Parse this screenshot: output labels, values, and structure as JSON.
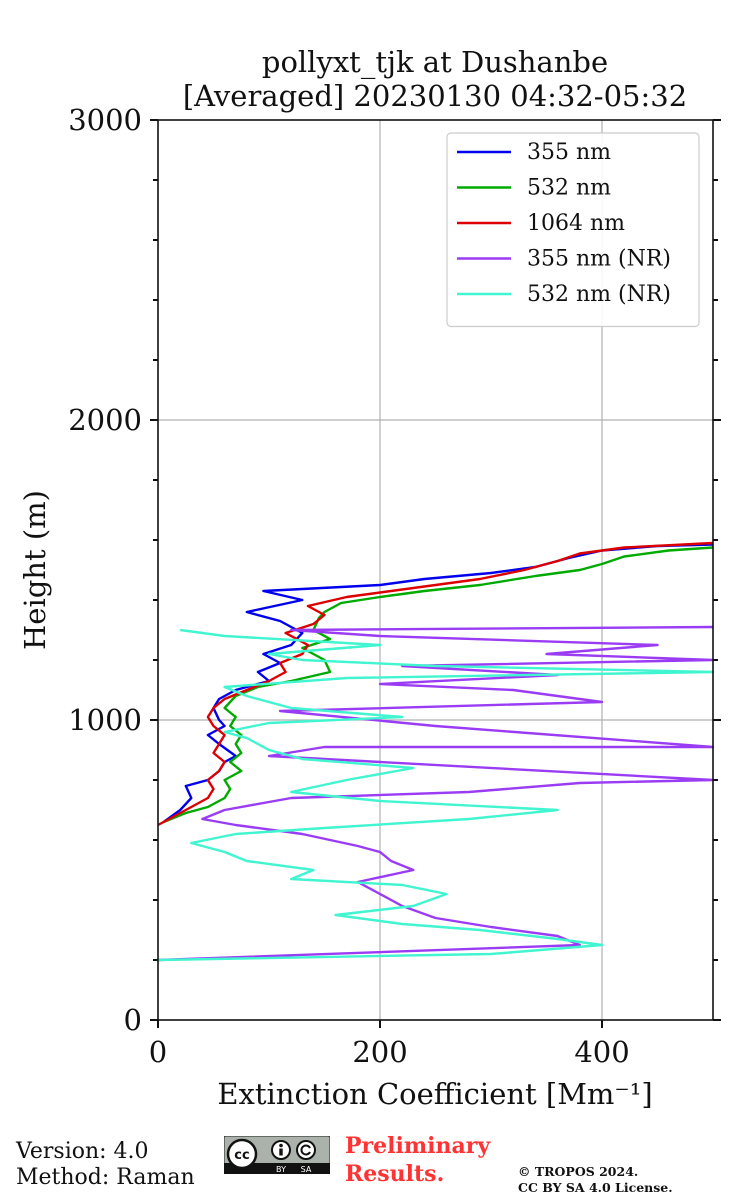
{
  "chart_data": {
    "type": "line",
    "title": "pollyxt_tjk at Dushanbe",
    "subtitle": "[Averaged] 20230130 04:32-05:32",
    "xlabel": "Extinction Coefficient [Mm⁻¹]",
    "ylabel": "Height (m)",
    "xlim": [
      0,
      500
    ],
    "ylim": [
      0,
      3000
    ],
    "x_ticks": [
      0,
      200,
      400
    ],
    "y_ticks": [
      0,
      1000,
      2000,
      3000
    ],
    "grid": true,
    "legend_position": "top-right",
    "series": [
      {
        "name": "355 nm",
        "color": "#0000ee",
        "points": [
          [
            5,
            660
          ],
          [
            20,
            700
          ],
          [
            30,
            740
          ],
          [
            25,
            780
          ],
          [
            45,
            800
          ],
          [
            55,
            830
          ],
          [
            60,
            860
          ],
          [
            70,
            880
          ],
          [
            55,
            920
          ],
          [
            45,
            950
          ],
          [
            60,
            980
          ],
          [
            55,
            1000
          ],
          [
            50,
            1040
          ],
          [
            55,
            1070
          ],
          [
            70,
            1100
          ],
          [
            100,
            1130
          ],
          [
            90,
            1160
          ],
          [
            110,
            1190
          ],
          [
            95,
            1220
          ],
          [
            120,
            1250
          ],
          [
            130,
            1290
          ],
          [
            110,
            1330
          ],
          [
            80,
            1360
          ],
          [
            130,
            1400
          ],
          [
            95,
            1430
          ],
          [
            200,
            1450
          ],
          [
            240,
            1470
          ],
          [
            300,
            1490
          ],
          [
            340,
            1510
          ],
          [
            370,
            1540
          ],
          [
            400,
            1565
          ],
          [
            450,
            1580
          ],
          [
            500,
            1585
          ]
        ]
      },
      {
        "name": "532 nm",
        "color": "#00aa00",
        "points": [
          [
            5,
            660
          ],
          [
            25,
            690
          ],
          [
            45,
            710
          ],
          [
            60,
            740
          ],
          [
            65,
            770
          ],
          [
            60,
            800
          ],
          [
            75,
            830
          ],
          [
            65,
            860
          ],
          [
            75,
            890
          ],
          [
            70,
            920
          ],
          [
            75,
            950
          ],
          [
            65,
            980
          ],
          [
            70,
            1010
          ],
          [
            60,
            1040
          ],
          [
            70,
            1080
          ],
          [
            90,
            1110
          ],
          [
            120,
            1130
          ],
          [
            155,
            1160
          ],
          [
            150,
            1200
          ],
          [
            130,
            1240
          ],
          [
            155,
            1270
          ],
          [
            140,
            1300
          ],
          [
            145,
            1340
          ],
          [
            150,
            1360
          ],
          [
            165,
            1390
          ],
          [
            200,
            1410
          ],
          [
            240,
            1430
          ],
          [
            290,
            1450
          ],
          [
            340,
            1480
          ],
          [
            380,
            1500
          ],
          [
            400,
            1520
          ],
          [
            420,
            1545
          ],
          [
            460,
            1565
          ],
          [
            500,
            1575
          ]
        ]
      },
      {
        "name": "1064 nm",
        "color": "#dd0000",
        "points": [
          [
            0,
            650
          ],
          [
            15,
            680
          ],
          [
            30,
            710
          ],
          [
            45,
            740
          ],
          [
            50,
            770
          ],
          [
            45,
            800
          ],
          [
            55,
            830
          ],
          [
            60,
            860
          ],
          [
            50,
            890
          ],
          [
            55,
            920
          ],
          [
            60,
            950
          ],
          [
            50,
            980
          ],
          [
            45,
            1010
          ],
          [
            50,
            1040
          ],
          [
            60,
            1070
          ],
          [
            80,
            1100
          ],
          [
            100,
            1130
          ],
          [
            115,
            1160
          ],
          [
            110,
            1190
          ],
          [
            130,
            1220
          ],
          [
            135,
            1250
          ],
          [
            115,
            1290
          ],
          [
            140,
            1320
          ],
          [
            150,
            1350
          ],
          [
            135,
            1380
          ],
          [
            170,
            1410
          ],
          [
            230,
            1440
          ],
          [
            290,
            1470
          ],
          [
            330,
            1500
          ],
          [
            360,
            1530
          ],
          [
            380,
            1555
          ],
          [
            420,
            1575
          ],
          [
            500,
            1590
          ]
        ]
      },
      {
        "name": "355 nm (NR)",
        "color": "#9b3cf5",
        "points": [
          [
            0,
            200
          ],
          [
            380,
            250
          ],
          [
            360,
            280
          ],
          [
            300,
            310
          ],
          [
            250,
            340
          ],
          [
            220,
            380
          ],
          [
            200,
            420
          ],
          [
            180,
            460
          ],
          [
            230,
            500
          ],
          [
            210,
            530
          ],
          [
            200,
            560
          ],
          [
            180,
            580
          ],
          [
            130,
            620
          ],
          [
            70,
            650
          ],
          [
            40,
            670
          ],
          [
            60,
            700
          ],
          [
            120,
            740
          ],
          [
            280,
            760
          ],
          [
            380,
            790
          ],
          [
            500,
            800
          ],
          [
            200,
            860
          ],
          [
            100,
            880
          ],
          [
            150,
            910
          ],
          [
            500,
            910
          ],
          [
            250,
            980
          ],
          [
            110,
            1030
          ],
          [
            400,
            1060
          ],
          [
            320,
            1100
          ],
          [
            200,
            1120
          ],
          [
            360,
            1150
          ],
          [
            220,
            1180
          ],
          [
            500,
            1200
          ],
          [
            350,
            1220
          ],
          [
            450,
            1250
          ],
          [
            200,
            1280
          ],
          [
            120,
            1300
          ],
          [
            500,
            1310
          ]
        ]
      },
      {
        "name": "532 nm (NR)",
        "color": "#40f5d0",
        "points": [
          [
            0,
            200
          ],
          [
            300,
            220
          ],
          [
            400,
            250
          ],
          [
            360,
            270
          ],
          [
            290,
            300
          ],
          [
            220,
            320
          ],
          [
            160,
            350
          ],
          [
            230,
            380
          ],
          [
            260,
            420
          ],
          [
            220,
            450
          ],
          [
            120,
            470
          ],
          [
            140,
            500
          ],
          [
            80,
            530
          ],
          [
            60,
            560
          ],
          [
            30,
            590
          ],
          [
            70,
            620
          ],
          [
            150,
            640
          ],
          [
            280,
            670
          ],
          [
            360,
            700
          ],
          [
            200,
            730
          ],
          [
            120,
            760
          ],
          [
            170,
            800
          ],
          [
            230,
            840
          ],
          [
            130,
            870
          ],
          [
            100,
            900
          ],
          [
            80,
            940
          ],
          [
            60,
            960
          ],
          [
            100,
            990
          ],
          [
            220,
            1010
          ],
          [
            120,
            1040
          ],
          [
            80,
            1080
          ],
          [
            60,
            1110
          ],
          [
            170,
            1140
          ],
          [
            500,
            1160
          ],
          [
            250,
            1180
          ],
          [
            130,
            1200
          ],
          [
            100,
            1220
          ],
          [
            200,
            1250
          ],
          [
            60,
            1280
          ],
          [
            20,
            1300
          ]
        ]
      }
    ]
  },
  "footer": {
    "version": "Version: 4.0",
    "method": "Method: Raman",
    "cc_label": "cc",
    "cc_by": "BY",
    "cc_sa": "SA",
    "preliminary_line1": "Preliminary",
    "preliminary_line2": "Results.",
    "copyright_line1": "© TROPOS 2024.",
    "copyright_line2": "CC BY SA 4.0 License."
  }
}
